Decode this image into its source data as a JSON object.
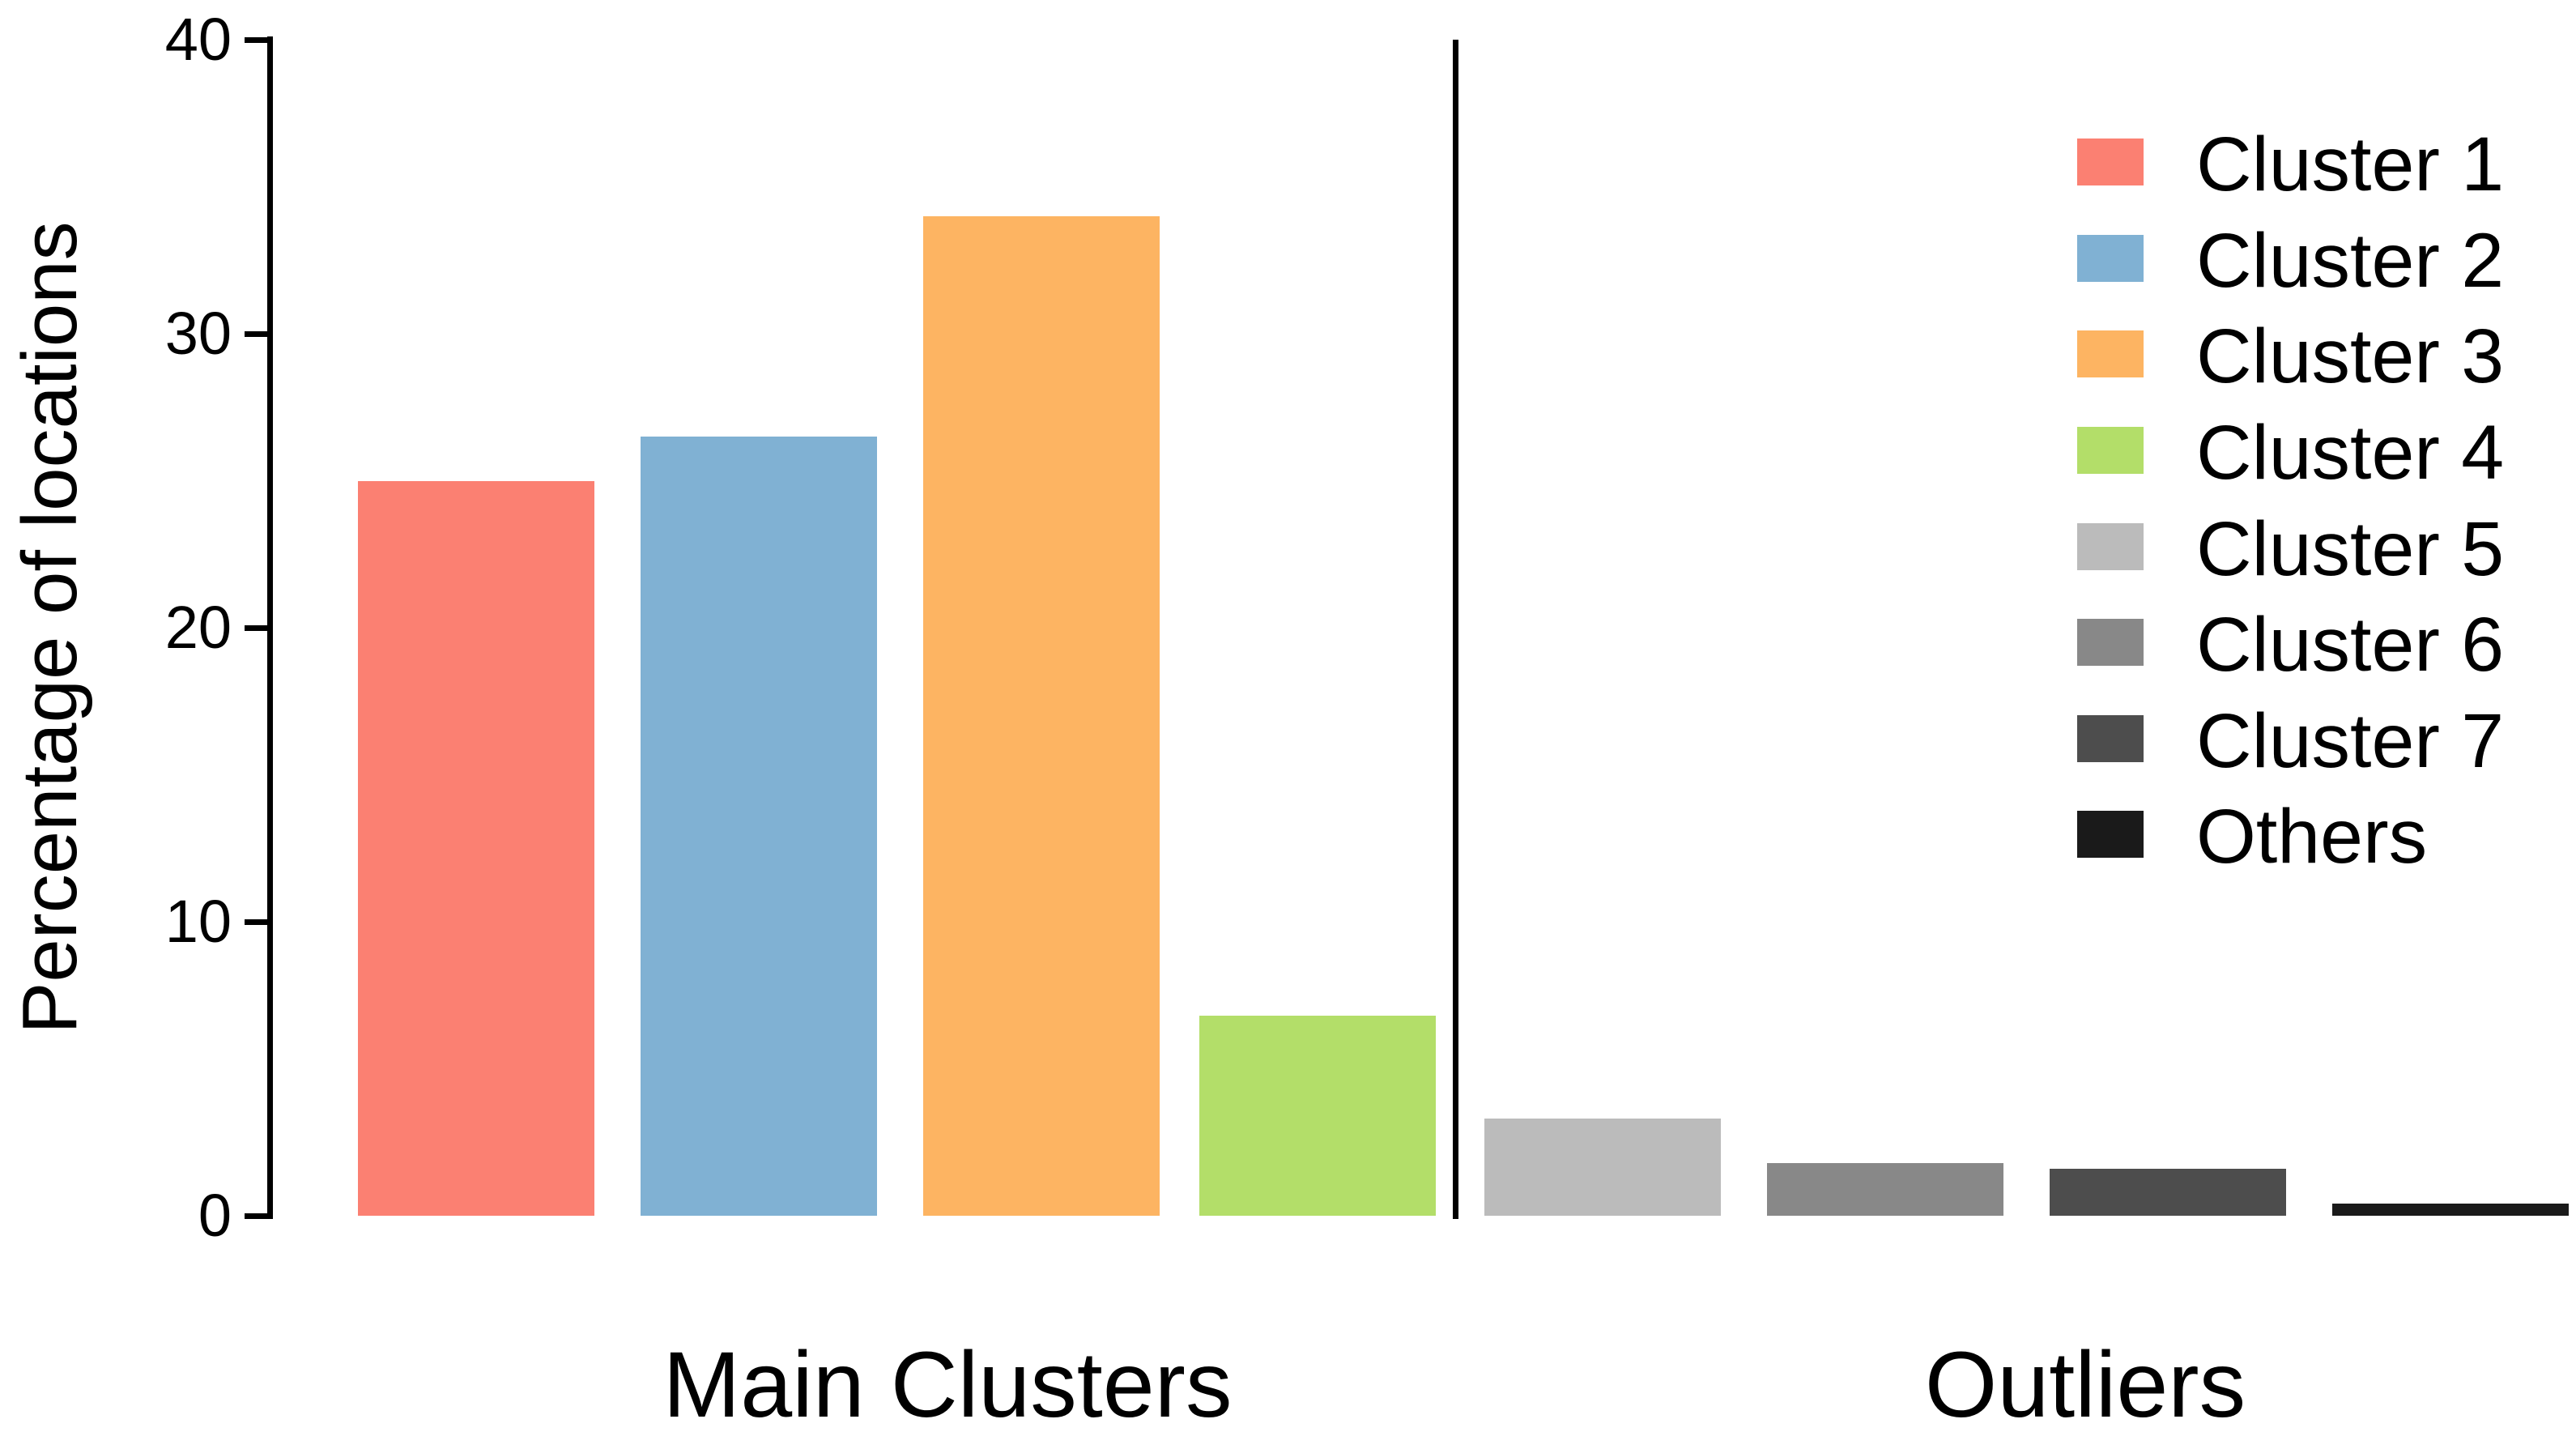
{
  "chart_data": {
    "type": "bar",
    "title": "",
    "xlabel": "",
    "ylabel": "Percentage of locations",
    "ylim": [
      0,
      40
    ],
    "yticks": [
      0,
      10,
      20,
      30,
      40
    ],
    "grid": false,
    "legend_position": "top-right",
    "categories": [
      "Cluster 1",
      "Cluster 2",
      "Cluster 3",
      "Cluster 4",
      "Cluster 5",
      "Cluster 6",
      "Cluster 7",
      "Others"
    ],
    "values": [
      25.0,
      26.5,
      34.0,
      6.8,
      3.3,
      1.8,
      1.6,
      0.4
    ],
    "colors": [
      "#FB8072",
      "#80B1D3",
      "#FDB462",
      "#B3DE69",
      "#BBBBBB",
      "#888888",
      "#4D4D4D",
      "#1A1A1A"
    ],
    "legend_entries": [
      "Cluster 1",
      "Cluster 2",
      "Cluster 3",
      "Cluster 4",
      "Cluster 5",
      "Cluster 6",
      "Cluster 7",
      "Others"
    ],
    "groups": [
      {
        "label": "Main Clusters",
        "member_indices": [
          0,
          1,
          2,
          3
        ]
      },
      {
        "label": "Outliers",
        "member_indices": [
          4,
          5,
          6,
          7
        ]
      }
    ],
    "separator_after_index": 3,
    "axis_color": "#000000"
  }
}
